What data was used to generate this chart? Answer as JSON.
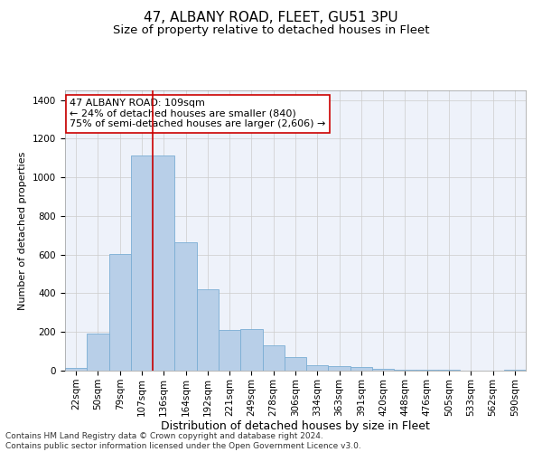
{
  "title": "47, ALBANY ROAD, FLEET, GU51 3PU",
  "subtitle": "Size of property relative to detached houses in Fleet",
  "xlabel": "Distribution of detached houses by size in Fleet",
  "ylabel": "Number of detached properties",
  "categories": [
    "22sqm",
    "50sqm",
    "79sqm",
    "107sqm",
    "136sqm",
    "164sqm",
    "192sqm",
    "221sqm",
    "249sqm",
    "278sqm",
    "306sqm",
    "334sqm",
    "363sqm",
    "391sqm",
    "420sqm",
    "448sqm",
    "476sqm",
    "505sqm",
    "533sqm",
    "562sqm",
    "590sqm"
  ],
  "values": [
    15,
    190,
    605,
    1115,
    1115,
    665,
    420,
    210,
    215,
    130,
    70,
    30,
    25,
    20,
    10,
    5,
    5,
    5,
    2,
    2,
    5
  ],
  "bar_color": "#b8cfe8",
  "bar_edge_color": "#7aadd4",
  "vline_color": "#cc0000",
  "vline_index": 3.5,
  "annotation_text": "47 ALBANY ROAD: 109sqm\n← 24% of detached houses are smaller (840)\n75% of semi-detached houses are larger (2,606) →",
  "annotation_box_color": "#ffffff",
  "annotation_box_edge_color": "#cc0000",
  "ylim": [
    0,
    1450
  ],
  "yticks": [
    0,
    200,
    400,
    600,
    800,
    1000,
    1200,
    1400
  ],
  "grid_color": "#cccccc",
  "background_color": "#eef2fa",
  "footer": "Contains HM Land Registry data © Crown copyright and database right 2024.\nContains public sector information licensed under the Open Government Licence v3.0.",
  "title_fontsize": 11,
  "subtitle_fontsize": 9.5,
  "xlabel_fontsize": 9,
  "ylabel_fontsize": 8,
  "tick_fontsize": 7.5,
  "annotation_fontsize": 8,
  "footer_fontsize": 6.5
}
